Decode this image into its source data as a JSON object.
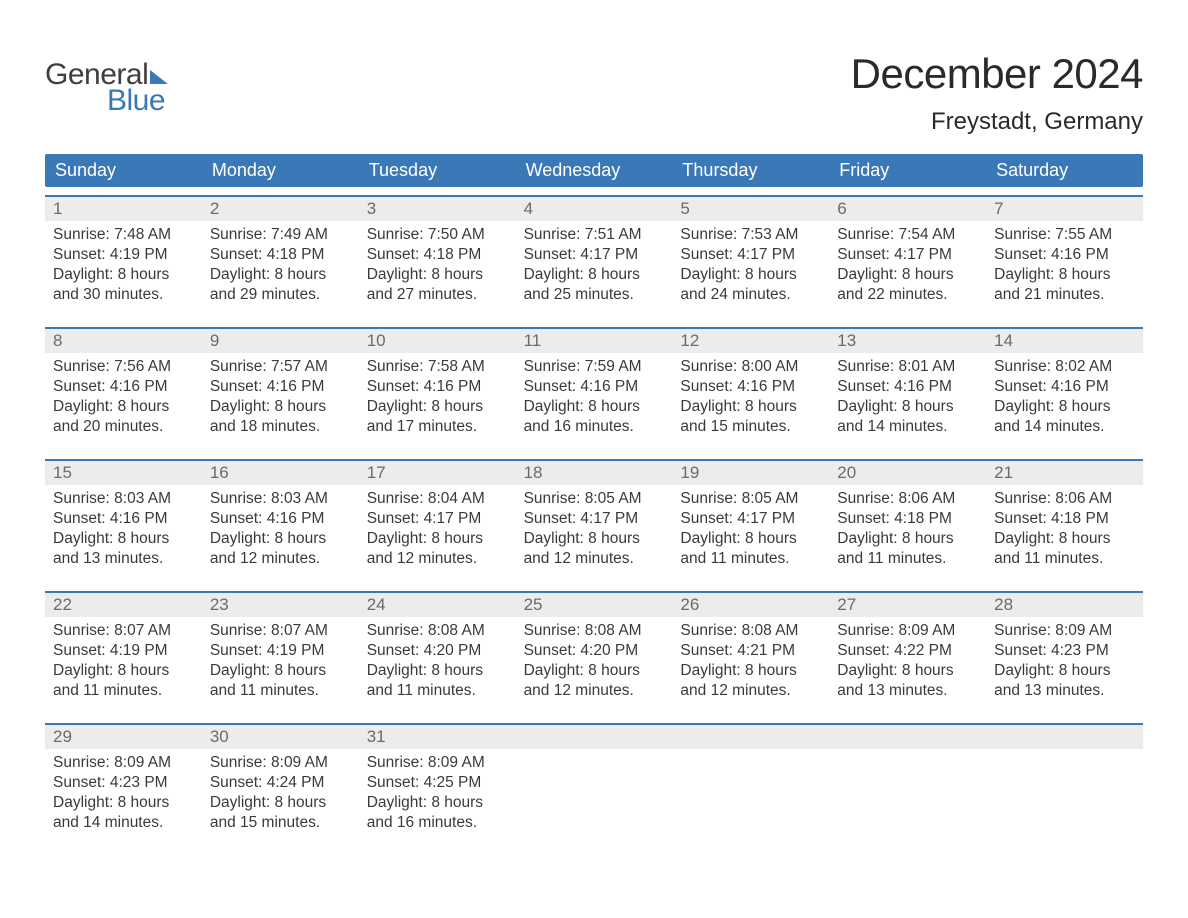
{
  "logo": {
    "word1": "General",
    "word2": "Blue"
  },
  "title": "December 2024",
  "location": "Freystadt, Germany",
  "colors": {
    "header_bg": "#3b78b8",
    "header_text": "#ffffff",
    "daynum_bg": "#ececec",
    "daynum_color": "#6b6b6b",
    "body_text": "#3a3a3a",
    "border": "#3b78b8",
    "logo_gray": "#3f3f3f",
    "logo_blue": "#3b78b8"
  },
  "dayNames": [
    "Sunday",
    "Monday",
    "Tuesday",
    "Wednesday",
    "Thursday",
    "Friday",
    "Saturday"
  ],
  "weeks": [
    [
      {
        "n": "1",
        "sr": "Sunrise: 7:48 AM",
        "ss": "Sunset: 4:19 PM",
        "d1": "Daylight: 8 hours",
        "d2": "and 30 minutes."
      },
      {
        "n": "2",
        "sr": "Sunrise: 7:49 AM",
        "ss": "Sunset: 4:18 PM",
        "d1": "Daylight: 8 hours",
        "d2": "and 29 minutes."
      },
      {
        "n": "3",
        "sr": "Sunrise: 7:50 AM",
        "ss": "Sunset: 4:18 PM",
        "d1": "Daylight: 8 hours",
        "d2": "and 27 minutes."
      },
      {
        "n": "4",
        "sr": "Sunrise: 7:51 AM",
        "ss": "Sunset: 4:17 PM",
        "d1": "Daylight: 8 hours",
        "d2": "and 25 minutes."
      },
      {
        "n": "5",
        "sr": "Sunrise: 7:53 AM",
        "ss": "Sunset: 4:17 PM",
        "d1": "Daylight: 8 hours",
        "d2": "and 24 minutes."
      },
      {
        "n": "6",
        "sr": "Sunrise: 7:54 AM",
        "ss": "Sunset: 4:17 PM",
        "d1": "Daylight: 8 hours",
        "d2": "and 22 minutes."
      },
      {
        "n": "7",
        "sr": "Sunrise: 7:55 AM",
        "ss": "Sunset: 4:16 PM",
        "d1": "Daylight: 8 hours",
        "d2": "and 21 minutes."
      }
    ],
    [
      {
        "n": "8",
        "sr": "Sunrise: 7:56 AM",
        "ss": "Sunset: 4:16 PM",
        "d1": "Daylight: 8 hours",
        "d2": "and 20 minutes."
      },
      {
        "n": "9",
        "sr": "Sunrise: 7:57 AM",
        "ss": "Sunset: 4:16 PM",
        "d1": "Daylight: 8 hours",
        "d2": "and 18 minutes."
      },
      {
        "n": "10",
        "sr": "Sunrise: 7:58 AM",
        "ss": "Sunset: 4:16 PM",
        "d1": "Daylight: 8 hours",
        "d2": "and 17 minutes."
      },
      {
        "n": "11",
        "sr": "Sunrise: 7:59 AM",
        "ss": "Sunset: 4:16 PM",
        "d1": "Daylight: 8 hours",
        "d2": "and 16 minutes."
      },
      {
        "n": "12",
        "sr": "Sunrise: 8:00 AM",
        "ss": "Sunset: 4:16 PM",
        "d1": "Daylight: 8 hours",
        "d2": "and 15 minutes."
      },
      {
        "n": "13",
        "sr": "Sunrise: 8:01 AM",
        "ss": "Sunset: 4:16 PM",
        "d1": "Daylight: 8 hours",
        "d2": "and 14 minutes."
      },
      {
        "n": "14",
        "sr": "Sunrise: 8:02 AM",
        "ss": "Sunset: 4:16 PM",
        "d1": "Daylight: 8 hours",
        "d2": "and 14 minutes."
      }
    ],
    [
      {
        "n": "15",
        "sr": "Sunrise: 8:03 AM",
        "ss": "Sunset: 4:16 PM",
        "d1": "Daylight: 8 hours",
        "d2": "and 13 minutes."
      },
      {
        "n": "16",
        "sr": "Sunrise: 8:03 AM",
        "ss": "Sunset: 4:16 PM",
        "d1": "Daylight: 8 hours",
        "d2": "and 12 minutes."
      },
      {
        "n": "17",
        "sr": "Sunrise: 8:04 AM",
        "ss": "Sunset: 4:17 PM",
        "d1": "Daylight: 8 hours",
        "d2": "and 12 minutes."
      },
      {
        "n": "18",
        "sr": "Sunrise: 8:05 AM",
        "ss": "Sunset: 4:17 PM",
        "d1": "Daylight: 8 hours",
        "d2": "and 12 minutes."
      },
      {
        "n": "19",
        "sr": "Sunrise: 8:05 AM",
        "ss": "Sunset: 4:17 PM",
        "d1": "Daylight: 8 hours",
        "d2": "and 11 minutes."
      },
      {
        "n": "20",
        "sr": "Sunrise: 8:06 AM",
        "ss": "Sunset: 4:18 PM",
        "d1": "Daylight: 8 hours",
        "d2": "and 11 minutes."
      },
      {
        "n": "21",
        "sr": "Sunrise: 8:06 AM",
        "ss": "Sunset: 4:18 PM",
        "d1": "Daylight: 8 hours",
        "d2": "and 11 minutes."
      }
    ],
    [
      {
        "n": "22",
        "sr": "Sunrise: 8:07 AM",
        "ss": "Sunset: 4:19 PM",
        "d1": "Daylight: 8 hours",
        "d2": "and 11 minutes."
      },
      {
        "n": "23",
        "sr": "Sunrise: 8:07 AM",
        "ss": "Sunset: 4:19 PM",
        "d1": "Daylight: 8 hours",
        "d2": "and 11 minutes."
      },
      {
        "n": "24",
        "sr": "Sunrise: 8:08 AM",
        "ss": "Sunset: 4:20 PM",
        "d1": "Daylight: 8 hours",
        "d2": "and 11 minutes."
      },
      {
        "n": "25",
        "sr": "Sunrise: 8:08 AM",
        "ss": "Sunset: 4:20 PM",
        "d1": "Daylight: 8 hours",
        "d2": "and 12 minutes."
      },
      {
        "n": "26",
        "sr": "Sunrise: 8:08 AM",
        "ss": "Sunset: 4:21 PM",
        "d1": "Daylight: 8 hours",
        "d2": "and 12 minutes."
      },
      {
        "n": "27",
        "sr": "Sunrise: 8:09 AM",
        "ss": "Sunset: 4:22 PM",
        "d1": "Daylight: 8 hours",
        "d2": "and 13 minutes."
      },
      {
        "n": "28",
        "sr": "Sunrise: 8:09 AM",
        "ss": "Sunset: 4:23 PM",
        "d1": "Daylight: 8 hours",
        "d2": "and 13 minutes."
      }
    ],
    [
      {
        "n": "29",
        "sr": "Sunrise: 8:09 AM",
        "ss": "Sunset: 4:23 PM",
        "d1": "Daylight: 8 hours",
        "d2": "and 14 minutes."
      },
      {
        "n": "30",
        "sr": "Sunrise: 8:09 AM",
        "ss": "Sunset: 4:24 PM",
        "d1": "Daylight: 8 hours",
        "d2": "and 15 minutes."
      },
      {
        "n": "31",
        "sr": "Sunrise: 8:09 AM",
        "ss": "Sunset: 4:25 PM",
        "d1": "Daylight: 8 hours",
        "d2": "and 16 minutes."
      },
      null,
      null,
      null,
      null
    ]
  ]
}
